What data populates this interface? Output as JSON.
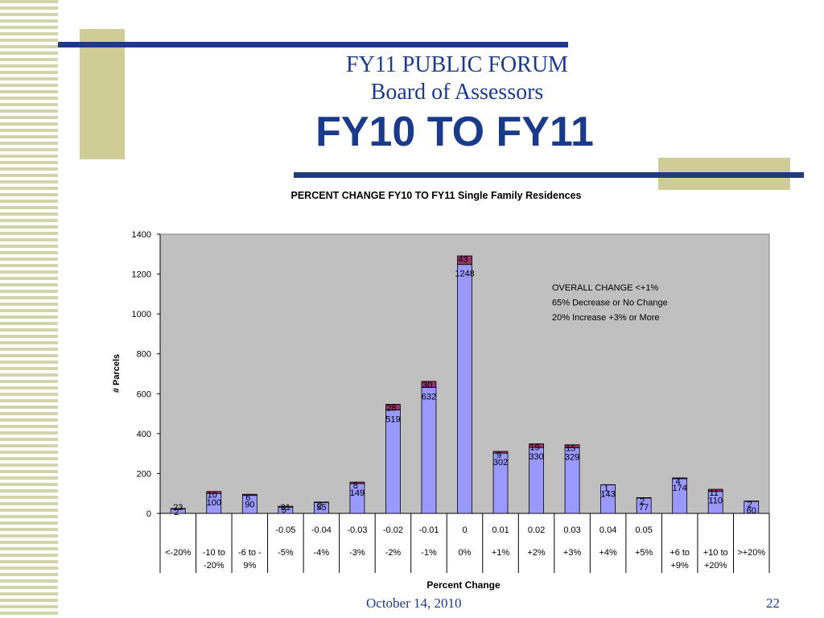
{
  "slide": {
    "title_line1": "FY11 PUBLIC FORUM",
    "title_line2": "Board of Assessors",
    "heading": "FY10 TO FY11",
    "footer_date": "October 14, 2010",
    "page_number": "22"
  },
  "colors": {
    "navy": "#1f3b7a",
    "tan": "#cfcd97",
    "bar_fill": "#9999ff",
    "bar_top": "#993366",
    "plot_bg": "#c0c0c0"
  },
  "chart_data": {
    "type": "bar",
    "stacked": true,
    "title": "PERCENT CHANGE FY10 TO FY11 Single Family Residences",
    "xlabel": "Percent Change",
    "ylabel": "# Parcels",
    "ylim": [
      0,
      1400
    ],
    "yticks": [
      0,
      200,
      400,
      600,
      800,
      1000,
      1200,
      1400
    ],
    "grid": false,
    "categories_row1": [
      "",
      "",
      "",
      "-0.05",
      "-0.04",
      "-0.03",
      "-0.02",
      "-0.01",
      "0",
      "0.01",
      "0.02",
      "0.03",
      "0.04",
      "0.05",
      "",
      "",
      ""
    ],
    "categories_row2": [
      "<-20%",
      "-10 to -20%",
      "-6 to -9%",
      "-5%",
      "-4%",
      "-3%",
      "-2%",
      "-1%",
      "0%",
      "+1%",
      "+2%",
      "+3%",
      "+4%",
      "+5%",
      "+6 to +9%",
      "+10 to +20%",
      ">+20%"
    ],
    "series": [
      {
        "values": [
          23,
          100,
          90,
          31,
          55,
          149,
          519,
          632,
          1248,
          302,
          330,
          329,
          143,
          77,
          174,
          110,
          60
        ]
      },
      {
        "values": [
          2,
          10,
          6,
          5,
          2,
          8,
          28,
          30,
          43,
          9,
          19,
          15,
          1,
          2,
          4,
          11,
          2
        ]
      }
    ],
    "annotation": [
      "OVERALL CHANGE <+1%",
      "65% Decrease or No Change",
      "20% Increase +3% or More"
    ]
  }
}
